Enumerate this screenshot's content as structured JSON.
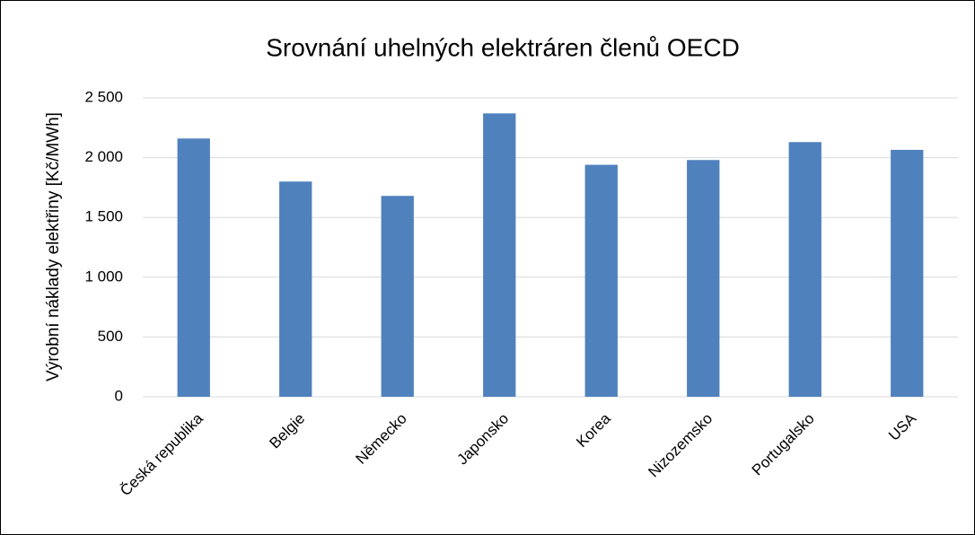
{
  "chart_data": {
    "type": "bar",
    "title": "Srovnání uhelných elektráren členů OECD",
    "y_label": "Výrobní náklady elektřiny [Kč/MWh]",
    "categories": [
      "Česká republika",
      "Belgie",
      "Německo",
      "Japonsko",
      "Korea",
      "Nizozemsko",
      "Portugalsko",
      "USA"
    ],
    "values": [
      2160,
      1800,
      1680,
      2370,
      1940,
      1980,
      2130,
      2065
    ],
    "color": "#4f81bd",
    "ylim": [
      0,
      2500
    ],
    "yticks": [
      0,
      500,
      {
        "value": 1000,
        "label": "1 000"
      },
      {
        "value": 1500,
        "label": "1 500"
      },
      {
        "value": 2000,
        "label": "2 000"
      },
      {
        "value": 2500,
        "label": "2 500"
      }
    ],
    "grid": true
  }
}
